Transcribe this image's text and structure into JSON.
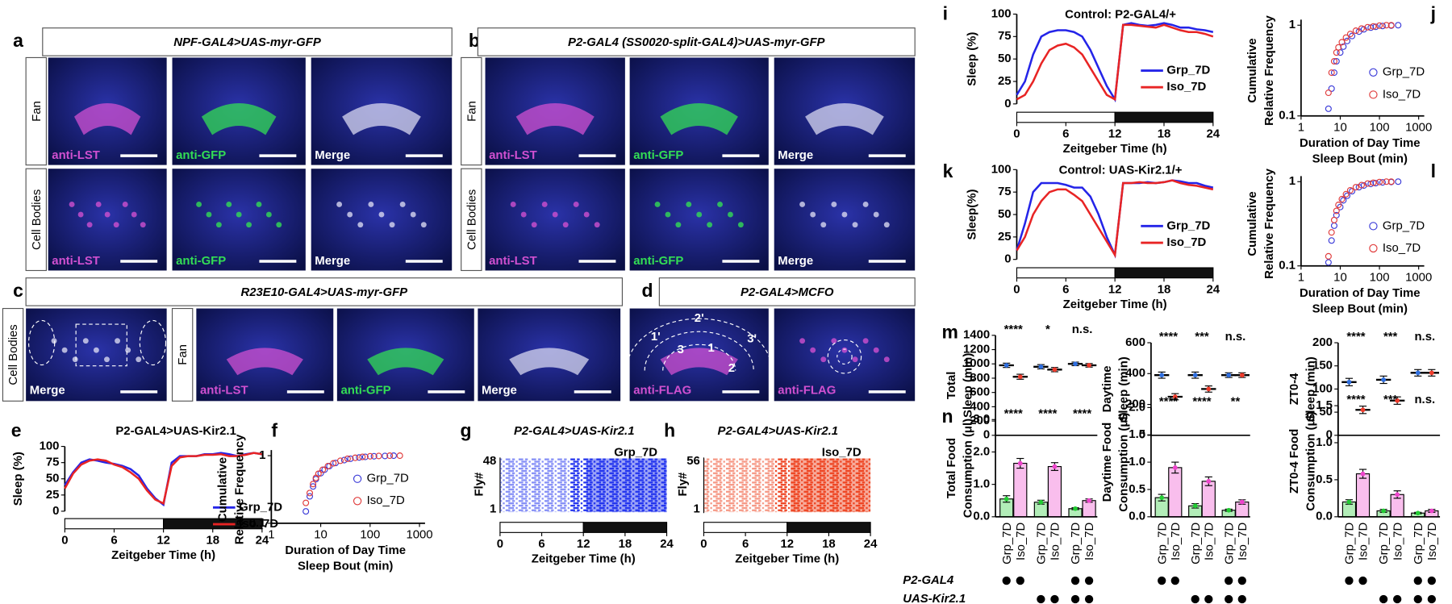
{
  "images": {
    "a": {
      "letter": "a",
      "title": "NPF-GAL4>UAS-myr-GFP",
      "rows": [
        "Fan",
        "Cell Bodies"
      ],
      "channels": [
        "anti-LST",
        "anti-GFP",
        "Merge"
      ]
    },
    "b": {
      "letter": "b",
      "title": "P2-GAL4 (SS0020-split-GAL4)>UAS-myr-GFP",
      "rows": [
        "Fan",
        "Cell Bodies"
      ],
      "channels": [
        "anti-LST",
        "anti-GFP",
        "Merge"
      ]
    },
    "c": {
      "letter": "c",
      "title": "R23E10-GAL4>UAS-myr-GFP",
      "left_row": "Cell Bodies",
      "left_channel": "Merge",
      "right_row": "Fan",
      "channels": [
        "anti-LST",
        "anti-GFP",
        "Merge"
      ]
    },
    "d": {
      "letter": "d",
      "title": "P2-GAL4>MCFO",
      "channels": [
        "anti-FLAG",
        "anti-FLAG"
      ],
      "regions": [
        "2'",
        "1'",
        "3'",
        "3",
        "1",
        "2"
      ]
    }
  },
  "chart_data": [
    {
      "type": "line",
      "letter": "e",
      "title": "P2-GAL4>UAS-Kir2.1",
      "x_label": "Zeitgeber Time (h)",
      "y_label": "Sleep (%)",
      "x": [
        0,
        1,
        2,
        3,
        4,
        5,
        6,
        7,
        8,
        9,
        10,
        11,
        12,
        13,
        14,
        15,
        16,
        17,
        18,
        19,
        20,
        21,
        22,
        23,
        24
      ],
      "xlim": [
        0,
        24
      ],
      "xticks": [
        0,
        6,
        12,
        18,
        24
      ],
      "ylim": [
        0,
        100
      ],
      "yticks": [
        0,
        25,
        50,
        75,
        100
      ],
      "light_dark": [
        {
          "from": 0,
          "to": 12,
          "color": "#ffffff"
        },
        {
          "from": 12,
          "to": 24,
          "color": "#111111"
        }
      ],
      "series": [
        {
          "name": "Grp_7D",
          "color": "#2424e8",
          "values": [
            40,
            60,
            75,
            80,
            78,
            75,
            73,
            70,
            65,
            55,
            35,
            20,
            10,
            75,
            85,
            85,
            85,
            88,
            88,
            90,
            88,
            85,
            88,
            90,
            88
          ]
        },
        {
          "name": "Iso_7D",
          "color": "#e82424",
          "values": [
            35,
            58,
            72,
            78,
            80,
            78,
            72,
            68,
            60,
            50,
            32,
            18,
            12,
            70,
            83,
            85,
            85,
            87,
            87,
            88,
            85,
            85,
            87,
            90,
            88
          ]
        }
      ]
    },
    {
      "type": "scatter",
      "letter": "f",
      "x_label": [
        "Duration of Day Time",
        "Sleep Bout (min)"
      ],
      "y_label": [
        "Cumulative",
        "Relative Frequency"
      ],
      "log_x": true,
      "log_y": true,
      "xlim": [
        1,
        1000
      ],
      "xticks": [
        1,
        10,
        100,
        1000
      ],
      "ylim": [
        0.1,
        1
      ],
      "yticks": [
        0.1,
        1
      ],
      "series": [
        {
          "name": "Grp_7D",
          "color": "#3a3ad8",
          "x": [
            5,
            6,
            7,
            8,
            10,
            12,
            15,
            20,
            30,
            40,
            60,
            80,
            120,
            200,
            300
          ],
          "values": [
            0.15,
            0.25,
            0.35,
            0.45,
            0.55,
            0.62,
            0.7,
            0.78,
            0.86,
            0.9,
            0.94,
            0.96,
            0.98,
            0.99,
            1
          ]
        },
        {
          "name": "Iso_7D",
          "color": "#e03a3a",
          "x": [
            5,
            6,
            7,
            8,
            9,
            11,
            14,
            18,
            25,
            35,
            50,
            70,
            100,
            150,
            250,
            400
          ],
          "values": [
            0.2,
            0.28,
            0.38,
            0.47,
            0.54,
            0.62,
            0.7,
            0.77,
            0.84,
            0.9,
            0.93,
            0.96,
            0.98,
            0.99,
            1,
            1
          ]
        }
      ]
    },
    {
      "type": "raster",
      "letter": "g",
      "title": "P2-GAL4>UAS-Kir2.1",
      "group": "Grp_7D",
      "color": "#2233ee",
      "y_label": "Fly#",
      "ylim": [
        1,
        48
      ],
      "yticks": [
        1,
        48
      ],
      "x_label": "Zeitgeber Time (h)",
      "xlim": [
        0,
        24
      ],
      "xticks": [
        0,
        6,
        12,
        18,
        24
      ],
      "light_dark": [
        {
          "from": 0,
          "to": 12,
          "color": "#ffffff"
        },
        {
          "from": 12,
          "to": 24,
          "color": "#111111"
        }
      ]
    },
    {
      "type": "raster",
      "letter": "h",
      "title": "P2-GAL4>UAS-Kir2.1",
      "group": "Iso_7D",
      "color": "#ee4422",
      "y_label": "Fly#",
      "ylim": [
        1,
        56
      ],
      "yticks": [
        1,
        56
      ],
      "x_label": "Zeitgeber Time (h)",
      "xlim": [
        0,
        24
      ],
      "xticks": [
        0,
        6,
        12,
        18,
        24
      ],
      "light_dark": [
        {
          "from": 0,
          "to": 12,
          "color": "#ffffff"
        },
        {
          "from": 12,
          "to": 24,
          "color": "#111111"
        }
      ]
    },
    {
      "type": "line",
      "letter": "i",
      "title": "Control: P2-GAL4/+",
      "x_label": "Zeitgeber Time (h)",
      "y_label": "Sleep (%)",
      "x": [
        0,
        1,
        2,
        3,
        4,
        5,
        6,
        7,
        8,
        9,
        10,
        11,
        12,
        13,
        14,
        15,
        16,
        17,
        18,
        19,
        20,
        21,
        22,
        23,
        24
      ],
      "xlim": [
        0,
        24
      ],
      "xticks": [
        0,
        6,
        12,
        18,
        24
      ],
      "ylim": [
        0,
        100
      ],
      "yticks": [
        0,
        25,
        50,
        75,
        100
      ],
      "light_dark": [
        {
          "from": 0,
          "to": 12,
          "color": "#ffffff"
        },
        {
          "from": 12,
          "to": 24,
          "color": "#111111"
        }
      ],
      "series": [
        {
          "name": "Grp_7D",
          "color": "#2424e8",
          "values": [
            10,
            25,
            55,
            75,
            80,
            82,
            82,
            80,
            75,
            60,
            40,
            20,
            5,
            88,
            90,
            88,
            87,
            88,
            90,
            88,
            85,
            85,
            83,
            82,
            80
          ]
        },
        {
          "name": "Iso_7D",
          "color": "#e82424",
          "values": [
            5,
            10,
            25,
            45,
            60,
            65,
            67,
            63,
            55,
            40,
            25,
            10,
            5,
            88,
            88,
            87,
            86,
            85,
            88,
            85,
            82,
            80,
            80,
            78,
            75
          ]
        }
      ]
    },
    {
      "type": "scatter",
      "letter": "j",
      "x_label": [
        "Duration of Day Time",
        "Sleep Bout (min)"
      ],
      "y_label": [
        "Cumulative",
        "Relative Frequency"
      ],
      "log_x": true,
      "log_y": true,
      "xlim": [
        1,
        1000
      ],
      "xticks": [
        1,
        10,
        100,
        1000
      ],
      "ylim": [
        0.1,
        1
      ],
      "yticks": [
        0.1,
        1
      ],
      "series": [
        {
          "name": "Grp_7D",
          "color": "#3a3ad8",
          "x": [
            5,
            6,
            7,
            8,
            10,
            12,
            15,
            20,
            30,
            40,
            60,
            80,
            120,
            200,
            300
          ],
          "values": [
            0.12,
            0.2,
            0.3,
            0.4,
            0.5,
            0.58,
            0.67,
            0.76,
            0.85,
            0.9,
            0.94,
            0.96,
            0.98,
            0.99,
            1
          ]
        },
        {
          "name": "Iso_7D",
          "color": "#e03a3a",
          "x": [
            5,
            6,
            7,
            8,
            9,
            11,
            14,
            18,
            25,
            35,
            50,
            70,
            100,
            150,
            200
          ],
          "values": [
            0.18,
            0.3,
            0.4,
            0.5,
            0.57,
            0.65,
            0.73,
            0.8,
            0.87,
            0.92,
            0.95,
            0.97,
            0.99,
            1,
            1
          ]
        }
      ]
    },
    {
      "type": "line",
      "letter": "k",
      "title": "Control: UAS-Kir2.1/+",
      "x_label": "Zeitgeber Time (h)",
      "y_label": "Sleep(%)",
      "x": [
        0,
        1,
        2,
        3,
        4,
        5,
        6,
        7,
        8,
        9,
        10,
        11,
        12,
        13,
        14,
        15,
        16,
        17,
        18,
        19,
        20,
        21,
        22,
        23,
        24
      ],
      "xlim": [
        0,
        24
      ],
      "xticks": [
        0,
        6,
        12,
        18,
        24
      ],
      "ylim": [
        0,
        100
      ],
      "yticks": [
        0,
        25,
        50,
        75,
        100
      ],
      "light_dark": [
        {
          "from": 0,
          "to": 12,
          "color": "#ffffff"
        },
        {
          "from": 12,
          "to": 24,
          "color": "#111111"
        }
      ],
      "series": [
        {
          "name": "Grp_7D",
          "color": "#2424e8",
          "values": [
            10,
            40,
            75,
            85,
            85,
            85,
            83,
            80,
            80,
            70,
            50,
            25,
            5,
            85,
            85,
            85,
            86,
            85,
            86,
            88,
            87,
            85,
            85,
            82,
            80
          ]
        },
        {
          "name": "Iso_7D",
          "color": "#e82424",
          "values": [
            10,
            25,
            50,
            65,
            75,
            78,
            78,
            72,
            65,
            50,
            35,
            20,
            5,
            85,
            85,
            86,
            85,
            85,
            86,
            88,
            85,
            83,
            82,
            80,
            78
          ]
        }
      ]
    },
    {
      "type": "scatter",
      "letter": "l",
      "x_label": [
        "Duration of Day Time",
        "Sleep Bout (min)"
      ],
      "y_label": [
        "Cumulative",
        "Relative Frequency"
      ],
      "log_x": true,
      "log_y": true,
      "xlim": [
        1,
        1000
      ],
      "xticks": [
        1,
        10,
        100,
        1000
      ],
      "ylim": [
        0.1,
        1
      ],
      "yticks": [
        0.1,
        1
      ],
      "series": [
        {
          "name": "Grp_7D",
          "color": "#3a3ad8",
          "x": [
            5,
            6,
            7,
            8,
            10,
            12,
            15,
            20,
            30,
            40,
            60,
            80,
            120,
            200,
            300
          ],
          "values": [
            0.11,
            0.2,
            0.3,
            0.4,
            0.5,
            0.6,
            0.68,
            0.77,
            0.86,
            0.9,
            0.94,
            0.96,
            0.98,
            0.99,
            1
          ]
        },
        {
          "name": "Iso_7D",
          "color": "#e03a3a",
          "x": [
            5,
            6,
            7,
            8,
            9,
            11,
            14,
            18,
            25,
            35,
            50,
            70,
            100,
            150,
            200
          ],
          "values": [
            0.13,
            0.25,
            0.35,
            0.45,
            0.53,
            0.62,
            0.71,
            0.79,
            0.86,
            0.91,
            0.95,
            0.97,
            0.99,
            1,
            1
          ]
        }
      ]
    },
    {
      "type": "dot",
      "letter": "m",
      "y_label": [
        "Total",
        "Sleep (min)"
      ],
      "ylim": [
        0,
        1400
      ],
      "yticks": [
        0,
        200,
        400,
        600,
        800,
        1000,
        1200,
        1400
      ],
      "colors": [
        "#2f6fe0",
        "#ee3b2b"
      ],
      "values": [
        980,
        820,
        960,
        920,
        1000,
        980
      ],
      "errors": [
        30,
        35,
        30,
        30,
        25,
        25
      ],
      "significance": [
        "****",
        "*",
        "n.s."
      ]
    },
    {
      "type": "dot",
      "y_label": [
        "Daytime",
        "Sleep (min)"
      ],
      "ylim": [
        0,
        600
      ],
      "yticks": [
        0,
        200,
        400,
        600
      ],
      "colors": [
        "#2f6fe0",
        "#ee3b2b"
      ],
      "values": [
        390,
        250,
        390,
        300,
        390,
        390
      ],
      "errors": [
        20,
        20,
        20,
        20,
        15,
        15
      ],
      "significance": [
        "****",
        "***",
        "n.s."
      ]
    },
    {
      "type": "dot",
      "y_label": [
        "ZT0-4",
        "Sleep (min)"
      ],
      "ylim": [
        0,
        200
      ],
      "yticks": [
        0,
        50,
        100,
        150,
        200
      ],
      "colors": [
        "#2f6fe0",
        "#ee3b2b"
      ],
      "values": [
        115,
        55,
        120,
        75,
        135,
        135
      ],
      "errors": [
        8,
        8,
        8,
        8,
        7,
        7
      ],
      "significance": [
        "****",
        "***",
        "n.s."
      ]
    },
    {
      "type": "bar",
      "letter": "n",
      "y_label": [
        "Total Food",
        "Consumption (μl)"
      ],
      "ylim": [
        0,
        3
      ],
      "yticks": [
        {
          "value": 0,
          "label": "0.0"
        },
        {
          "value": 1,
          "label": "1.0"
        },
        {
          "value": 2,
          "label": "2.0"
        },
        {
          "value": 3,
          "label": "3.0"
        }
      ],
      "categories": [
        "Grp_7D",
        "Iso_7D",
        "Grp_7D",
        "Iso_7D",
        "Grp_7D",
        "Iso_7D"
      ],
      "colors": [
        "#22cc33",
        "#ee44cc"
      ],
      "values": [
        0.55,
        1.65,
        0.45,
        1.55,
        0.25,
        0.5
      ],
      "errors": [
        0.1,
        0.15,
        0.06,
        0.12,
        0.03,
        0.05
      ],
      "significance": [
        "****",
        "****",
        "****"
      ]
    },
    {
      "type": "bar",
      "y_label": [
        "Daytime Food",
        "Consumption (μl)"
      ],
      "ylim": [
        0,
        2
      ],
      "yticks": [
        {
          "value": 0,
          "label": "0.0"
        },
        {
          "value": 0.5,
          "label": "0.5"
        },
        {
          "value": 1,
          "label": "1.0"
        },
        {
          "value": 1.5,
          "label": "1.5"
        },
        {
          "value": 2,
          "label": "2.0"
        }
      ],
      "categories": [
        "Grp_7D",
        "Iso_7D",
        "Grp_7D",
        "Iso_7D",
        "Grp_7D",
        "Iso_7D"
      ],
      "colors": [
        "#22cc33",
        "#ee44cc"
      ],
      "values": [
        0.35,
        0.9,
        0.2,
        0.65,
        0.12,
        0.27
      ],
      "errors": [
        0.06,
        0.1,
        0.04,
        0.08,
        0.02,
        0.04
      ],
      "significance": [
        "****",
        "****",
        "**"
      ]
    },
    {
      "type": "bar",
      "y_label": [
        "ZT0-4 Food",
        "Consumption (μl)"
      ],
      "ylim": [
        0,
        1.5
      ],
      "yticks": [
        {
          "value": 0,
          "label": "0.0"
        },
        {
          "value": 0.5,
          "label": "0.5"
        },
        {
          "value": 1,
          "label": "1.0"
        },
        {
          "value": 1.5,
          "label": "1.5"
        }
      ],
      "categories": [
        "Grp_7D",
        "Iso_7D",
        "Grp_7D",
        "Iso_7D",
        "Grp_7D",
        "Iso_7D"
      ],
      "colors": [
        "#22cc33",
        "#ee44cc"
      ],
      "values": [
        0.2,
        0.58,
        0.08,
        0.3,
        0.05,
        0.08
      ],
      "errors": [
        0.03,
        0.06,
        0.02,
        0.05,
        0.01,
        0.02
      ],
      "significance": [
        "****",
        "***",
        "n.s."
      ]
    }
  ],
  "genotype": {
    "rows": [
      {
        "label": "P2-GAL4",
        "groups": [
          true,
          false,
          true
        ]
      },
      {
        "label": "UAS-Kir2.1",
        "groups": [
          false,
          true,
          true
        ]
      }
    ]
  }
}
